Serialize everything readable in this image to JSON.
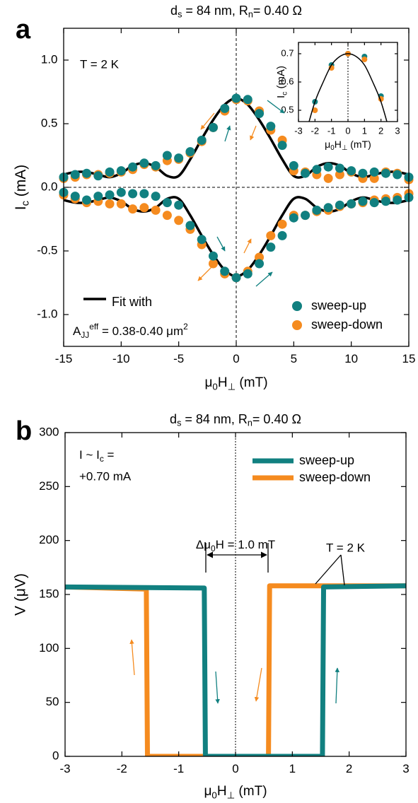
{
  "chart_data": [
    {
      "type": "scatter",
      "panel": "a",
      "title": [
        "d",
        {
          "sub": "s"
        },
        " = 84 nm, R",
        {
          "sub": "n"
        },
        "= 0.40 Ω"
      ],
      "xlabel": [
        "μ",
        {
          "sub": "0"
        },
        "H",
        {
          "sub": "⊥"
        },
        " (mT)"
      ],
      "ylabel": [
        "I",
        {
          "sub": "c"
        },
        " (mA)"
      ],
      "xlim": [
        -15,
        15
      ],
      "xticks": [
        -15,
        -10,
        -5,
        0,
        5,
        10,
        15
      ],
      "ylim": [
        -1.25,
        1.25
      ],
      "yticks": [
        {
          "value": -1,
          "label": "-1.0"
        },
        -0.5,
        {
          "value": 0,
          "label": "0.0"
        },
        0.5,
        {
          "value": 1,
          "label": "1.0"
        }
      ],
      "reference_lines": {
        "x": 0,
        "y": 0
      },
      "annotations": [
        "T = 2 K",
        [
          "A",
          {
            "sub": "JJ"
          },
          {
            "sup": "eff"
          },
          " = 0.38-0.40 μm",
          {
            "sup": "2"
          }
        ]
      ],
      "series": [
        {
          "name": "sweep-up",
          "color": "#118080",
          "mode": "markers",
          "x": [
            -15,
            -14,
            -13,
            -12,
            -11,
            -10,
            -9,
            -8,
            -7,
            -6,
            -5,
            -4,
            -3,
            -2,
            -1,
            0,
            1,
            2,
            3,
            4,
            5,
            6,
            7,
            8,
            9,
            10,
            11,
            12,
            13,
            14,
            15,
            -15,
            -14,
            -13,
            -12,
            -11,
            -10,
            -9,
            -8,
            -7,
            -6,
            -5,
            -4,
            -3,
            -2,
            -1,
            0,
            1,
            2,
            3,
            4,
            5,
            6,
            7,
            8,
            9,
            10,
            11,
            12,
            13,
            14,
            15
          ],
          "values": [
            0.08,
            0.1,
            0.11,
            0.09,
            0.12,
            0.13,
            0.16,
            0.19,
            0.17,
            0.25,
            0.23,
            0.28,
            0.37,
            0.47,
            0.62,
            0.7,
            0.69,
            0.58,
            0.48,
            0.33,
            0.17,
            0.11,
            0.14,
            0.16,
            0.15,
            0.13,
            0.11,
            0.12,
            0.11,
            0.1,
            0.08,
            -0.04,
            -0.07,
            -0.1,
            -0.07,
            -0.06,
            -0.04,
            -0.05,
            -0.05,
            -0.07,
            -0.12,
            -0.14,
            -0.3,
            -0.41,
            -0.54,
            -0.66,
            -0.71,
            -0.68,
            -0.6,
            -0.47,
            -0.38,
            -0.24,
            -0.22,
            -0.18,
            -0.16,
            -0.14,
            -0.13,
            -0.11,
            -0.12,
            -0.11,
            -0.1,
            -0.08
          ]
        },
        {
          "name": "sweep-down",
          "color": "#f58b1f",
          "mode": "markers",
          "x": [
            -15,
            -14,
            -13,
            -12,
            -11,
            -10,
            -9,
            -8,
            -7,
            -6,
            -5,
            -4,
            -3,
            -2,
            -1,
            0,
            1,
            2,
            3,
            4,
            5,
            6,
            7,
            8,
            9,
            10,
            11,
            12,
            13,
            14,
            15,
            -15,
            -14,
            -13,
            -12,
            -11,
            -10,
            -9,
            -8,
            -7,
            -6,
            -5,
            -4,
            -3,
            -2,
            -1,
            0,
            1,
            2,
            3,
            4,
            5,
            6,
            7,
            8,
            9,
            10,
            11,
            12,
            13,
            14,
            15
          ],
          "values": [
            0.07,
            0.08,
            0.1,
            0.1,
            0.11,
            0.12,
            0.14,
            0.18,
            0.16,
            0.21,
            0.22,
            0.27,
            0.36,
            0.47,
            0.6,
            0.69,
            0.68,
            0.6,
            0.45,
            0.37,
            0.13,
            0.12,
            0.1,
            0.07,
            0.1,
            0.12,
            0.07,
            0.07,
            0.12,
            0.11,
            0.06,
            -0.06,
            -0.09,
            -0.12,
            -0.11,
            -0.13,
            -0.13,
            -0.17,
            -0.16,
            -0.18,
            -0.22,
            -0.26,
            -0.33,
            -0.45,
            -0.6,
            -0.68,
            -0.71,
            -0.66,
            -0.55,
            -0.38,
            -0.29,
            -0.22,
            -0.22,
            -0.19,
            -0.18,
            -0.15,
            -0.13,
            -0.12,
            -0.1,
            -0.09,
            -0.08,
            -0.05
          ]
        },
        {
          "name": "Fit with",
          "color": "#000000",
          "mode": "line",
          "x": [
            -15,
            -14,
            -13,
            -12,
            -11,
            -10,
            -9,
            -8,
            -7,
            -6,
            -5,
            -4,
            -3,
            -2,
            -1,
            0,
            1,
            2,
            3,
            4,
            5,
            6,
            7,
            8,
            9,
            10,
            11,
            12,
            13,
            14,
            15,
            null,
            -15,
            -14,
            -13,
            -12,
            -11,
            -10,
            -9,
            -8,
            -7,
            -6,
            -5,
            -4,
            -3,
            -2,
            -1,
            0,
            1,
            2,
            3,
            4,
            5,
            6,
            7,
            8,
            9,
            10,
            11,
            12,
            13,
            14,
            15
          ],
          "values": [
            0.1,
            0.12,
            0.12,
            0.1,
            0.08,
            0.11,
            0.17,
            0.19,
            0.16,
            0.09,
            0.09,
            0.22,
            0.38,
            0.53,
            0.65,
            0.7,
            0.65,
            0.53,
            0.38,
            0.22,
            0.09,
            0.09,
            0.16,
            0.19,
            0.17,
            0.11,
            0.08,
            0.1,
            0.12,
            0.12,
            0.1,
            null,
            -0.1,
            -0.12,
            -0.12,
            -0.1,
            -0.08,
            -0.11,
            -0.17,
            -0.19,
            -0.16,
            -0.09,
            -0.09,
            -0.22,
            -0.38,
            -0.53,
            -0.65,
            -0.7,
            -0.65,
            -0.53,
            -0.38,
            -0.22,
            -0.09,
            -0.09,
            -0.16,
            -0.19,
            -0.17,
            -0.11,
            -0.08,
            -0.1,
            -0.12,
            -0.12,
            -0.1
          ]
        }
      ]
    },
    {
      "type": "scatter",
      "xlabel": [
        "μ",
        {
          "sub": "0"
        },
        "H",
        {
          "sub": "⊥"
        },
        " (mT)"
      ],
      "ylabel": [
        "I",
        {
          "sub": "c"
        },
        " (mA)"
      ],
      "xlim": [
        -3,
        3
      ],
      "xticks": [
        -3,
        -2,
        -1,
        0,
        1,
        2,
        3
      ],
      "ylim": [
        0.46,
        0.74
      ],
      "yticks": [
        0.5,
        0.6,
        0.7
      ],
      "reference_lines": {
        "x": 0
      },
      "series": [
        {
          "color": "#000000",
          "mode": "line",
          "x": [
            -2.5,
            -2,
            -1.5,
            -1,
            -0.5,
            0,
            0.5,
            1,
            1.5,
            2,
            2.5
          ],
          "values": [
            0.43,
            0.53,
            0.6,
            0.66,
            0.69,
            0.7,
            0.69,
            0.66,
            0.6,
            0.53,
            0.43
          ]
        },
        {
          "color": "#f58b1f",
          "mode": "markers",
          "x": [
            -2,
            -1,
            0,
            1,
            2
          ],
          "values": [
            0.5,
            0.65,
            0.7,
            0.68,
            0.54
          ]
        },
        {
          "color": "#118080",
          "mode": "markers",
          "x": [
            -2,
            -1,
            0,
            1,
            2
          ],
          "values": [
            0.53,
            0.66,
            0.7,
            0.69,
            0.55
          ]
        }
      ]
    },
    {
      "type": "line",
      "panel": "b",
      "title": [
        "d",
        {
          "sub": "s"
        },
        " = 84 nm, R",
        {
          "sub": "n"
        },
        "= 0.40 Ω"
      ],
      "xlabel": [
        "μ",
        {
          "sub": "0"
        },
        "H",
        {
          "sub": "⊥"
        },
        " (mT)"
      ],
      "ylabel": "V (μV)",
      "xlim": [
        -3,
        3
      ],
      "xticks": [
        -3,
        -2,
        -1,
        0,
        1,
        2,
        3
      ],
      "ylim": [
        0,
        300
      ],
      "yticks": [
        0,
        50,
        100,
        150,
        200,
        250,
        300
      ],
      "reference_lines": {
        "x": 0
      },
      "annotations": [
        [
          "I ~ I",
          {
            "sub": "c"
          },
          " ="
        ],
        "+0.70 mA",
        [
          "Δμ",
          {
            "sub": "0"
          },
          "H = 1.0 mT"
        ],
        "T = 2 K"
      ],
      "series": [
        {
          "name": "sweep-up",
          "color": "#118080",
          "mode": "line",
          "x": [
            -3,
            -0.55,
            -0.53,
            1.53,
            1.55,
            3
          ],
          "values": [
            157,
            156,
            0,
            0,
            157,
            158
          ]
        },
        {
          "name": "sweep-down",
          "color": "#f58b1f",
          "mode": "line",
          "x": [
            3,
            0.6,
            0.58,
            -1.55,
            -1.57,
            -3
          ],
          "values": [
            158,
            158,
            0,
            0,
            155,
            157
          ]
        }
      ]
    }
  ]
}
